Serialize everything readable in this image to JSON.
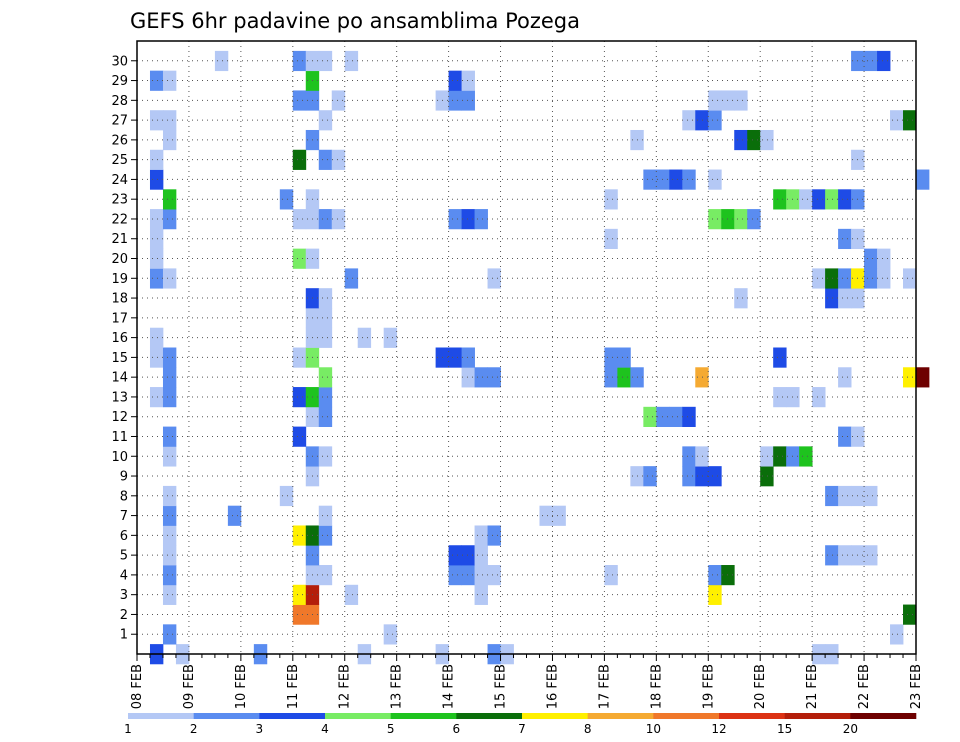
{
  "chart_data": {
    "type": "heatmap",
    "title": "GEFS 6hr padavine po ansamblima Pozega",
    "xlabel": "",
    "ylabel": "",
    "x_ticks": [
      "08 FEB",
      "09 FEB",
      "10 FEB",
      "11 FEB",
      "12 FEB",
      "13 FEB",
      "14 FEB",
      "15 FEB",
      "16 FEB",
      "17 FEB",
      "18 FEB",
      "19 FEB",
      "20 FEB",
      "21 FEB",
      "22 FEB",
      "23 FEB"
    ],
    "y_ticks": [
      "1",
      "2",
      "3",
      "4",
      "5",
      "6",
      "7",
      "8",
      "9",
      "10",
      "11",
      "12",
      "13",
      "14",
      "15",
      "16",
      "17",
      "18",
      "19",
      "20",
      "21",
      "22",
      "23",
      "24",
      "25",
      "26",
      "27",
      "28",
      "29",
      "30"
    ],
    "xlim_days": [
      0,
      15
    ],
    "steps_per_day": 4,
    "ylim": [
      0,
      30
    ],
    "grid": true,
    "colorbar": {
      "position": "bottom",
      "levels": [
        "1",
        "2",
        "3",
        "4",
        "5",
        "6",
        "7",
        "8",
        "10",
        "12",
        "15",
        "20"
      ],
      "colors": [
        "#b4c8f5",
        "#5a8cf0",
        "#1e4be6",
        "#78ec64",
        "#1ec31e",
        "#0a6e0a",
        "#fff000",
        "#f5aa32",
        "#f0782a",
        "#dc3214",
        "#b41e0a",
        "#6e0000"
      ]
    },
    "cells": [
      [
        1,
        0,
        3
      ],
      [
        3,
        0,
        1
      ],
      [
        9,
        0,
        2
      ],
      [
        17,
        0,
        1
      ],
      [
        23,
        0,
        1
      ],
      [
        27,
        0,
        2
      ],
      [
        28,
        0,
        1
      ],
      [
        52,
        0,
        1
      ],
      [
        53,
        0,
        1
      ],
      [
        2,
        1,
        2
      ],
      [
        19,
        1,
        1
      ],
      [
        58,
        1,
        1
      ],
      [
        12,
        2,
        9
      ],
      [
        13,
        2,
        9
      ],
      [
        59,
        2,
        6
      ],
      [
        2,
        3,
        1
      ],
      [
        12,
        3,
        7
      ],
      [
        13,
        3,
        11
      ],
      [
        16,
        3,
        1
      ],
      [
        26,
        3,
        1
      ],
      [
        44,
        3,
        7
      ],
      [
        2,
        4,
        2
      ],
      [
        13,
        4,
        1
      ],
      [
        14,
        4,
        1
      ],
      [
        24,
        4,
        2
      ],
      [
        25,
        4,
        2
      ],
      [
        26,
        4,
        1
      ],
      [
        27,
        4,
        1
      ],
      [
        36,
        4,
        1
      ],
      [
        44,
        4,
        2
      ],
      [
        45,
        4,
        6
      ],
      [
        2,
        5,
        1
      ],
      [
        13,
        5,
        2
      ],
      [
        24,
        5,
        3
      ],
      [
        25,
        5,
        3
      ],
      [
        26,
        5,
        1
      ],
      [
        53,
        5,
        2
      ],
      [
        54,
        5,
        1
      ],
      [
        55,
        5,
        1
      ],
      [
        56,
        5,
        1
      ],
      [
        2,
        6,
        1
      ],
      [
        12,
        6,
        7
      ],
      [
        13,
        6,
        6
      ],
      [
        14,
        6,
        2
      ],
      [
        26,
        6,
        1
      ],
      [
        27,
        6,
        2
      ],
      [
        2,
        7,
        2
      ],
      [
        7,
        7,
        2
      ],
      [
        14,
        7,
        1
      ],
      [
        31,
        7,
        1
      ],
      [
        32,
        7,
        1
      ],
      [
        2,
        8,
        1
      ],
      [
        11,
        8,
        1
      ],
      [
        53,
        8,
        2
      ],
      [
        54,
        8,
        1
      ],
      [
        55,
        8,
        1
      ],
      [
        56,
        8,
        1
      ],
      [
        13,
        9,
        1
      ],
      [
        38,
        9,
        1
      ],
      [
        39,
        9,
        2
      ],
      [
        42,
        9,
        2
      ],
      [
        43,
        9,
        3
      ],
      [
        44,
        9,
        3
      ],
      [
        48,
        9,
        6
      ],
      [
        2,
        10,
        1
      ],
      [
        13,
        10,
        2
      ],
      [
        14,
        10,
        1
      ],
      [
        42,
        10,
        2
      ],
      [
        43,
        10,
        1
      ],
      [
        48,
        10,
        1
      ],
      [
        49,
        10,
        6
      ],
      [
        50,
        10,
        2
      ],
      [
        51,
        10,
        5
      ],
      [
        2,
        11,
        2
      ],
      [
        12,
        11,
        3
      ],
      [
        54,
        11,
        2
      ],
      [
        55,
        11,
        1
      ],
      [
        13,
        12,
        1
      ],
      [
        14,
        12,
        2
      ],
      [
        39,
        12,
        4
      ],
      [
        40,
        12,
        2
      ],
      [
        41,
        12,
        2
      ],
      [
        42,
        12,
        3
      ],
      [
        1,
        13,
        1
      ],
      [
        2,
        13,
        2
      ],
      [
        12,
        13,
        3
      ],
      [
        13,
        13,
        5
      ],
      [
        14,
        13,
        2
      ],
      [
        49,
        13,
        1
      ],
      [
        50,
        13,
        1
      ],
      [
        52,
        13,
        1
      ],
      [
        2,
        14,
        2
      ],
      [
        14,
        14,
        4
      ],
      [
        25,
        14,
        1
      ],
      [
        26,
        14,
        2
      ],
      [
        27,
        14,
        2
      ],
      [
        36,
        14,
        2
      ],
      [
        37,
        14,
        5
      ],
      [
        38,
        14,
        2
      ],
      [
        43,
        14,
        8
      ],
      [
        54,
        14,
        1
      ],
      [
        59,
        14,
        7
      ],
      [
        60,
        14,
        12
      ],
      [
        1,
        15,
        1
      ],
      [
        2,
        15,
        2
      ],
      [
        12,
        15,
        1
      ],
      [
        13,
        15,
        4
      ],
      [
        23,
        15,
        3
      ],
      [
        24,
        15,
        3
      ],
      [
        25,
        15,
        2
      ],
      [
        36,
        15,
        2
      ],
      [
        37,
        15,
        2
      ],
      [
        49,
        15,
        3
      ],
      [
        1,
        16,
        1
      ],
      [
        13,
        16,
        1
      ],
      [
        14,
        16,
        1
      ],
      [
        17,
        16,
        1
      ],
      [
        19,
        16,
        1
      ],
      [
        13,
        17,
        1
      ],
      [
        14,
        17,
        1
      ],
      [
        13,
        18,
        3
      ],
      [
        14,
        18,
        1
      ],
      [
        46,
        18,
        1
      ],
      [
        53,
        18,
        3
      ],
      [
        54,
        18,
        1
      ],
      [
        55,
        18,
        1
      ],
      [
        1,
        19,
        2
      ],
      [
        2,
        19,
        1
      ],
      [
        16,
        19,
        2
      ],
      [
        27,
        19,
        1
      ],
      [
        52,
        19,
        1
      ],
      [
        53,
        19,
        6
      ],
      [
        54,
        19,
        2
      ],
      [
        55,
        19,
        7
      ],
      [
        56,
        19,
        2
      ],
      [
        57,
        19,
        1
      ],
      [
        59,
        19,
        1
      ],
      [
        1,
        20,
        1
      ],
      [
        12,
        20,
        4
      ],
      [
        13,
        20,
        1
      ],
      [
        56,
        20,
        2
      ],
      [
        57,
        20,
        1
      ],
      [
        1,
        21,
        1
      ],
      [
        36,
        21,
        1
      ],
      [
        54,
        21,
        2
      ],
      [
        55,
        21,
        1
      ],
      [
        1,
        22,
        1
      ],
      [
        2,
        22,
        2
      ],
      [
        12,
        22,
        1
      ],
      [
        13,
        22,
        1
      ],
      [
        14,
        22,
        2
      ],
      [
        15,
        22,
        1
      ],
      [
        24,
        22,
        2
      ],
      [
        25,
        22,
        3
      ],
      [
        26,
        22,
        2
      ],
      [
        44,
        22,
        4
      ],
      [
        45,
        22,
        5
      ],
      [
        46,
        22,
        4
      ],
      [
        47,
        22,
        2
      ],
      [
        2,
        23,
        5
      ],
      [
        11,
        23,
        2
      ],
      [
        13,
        23,
        1
      ],
      [
        36,
        23,
        1
      ],
      [
        49,
        23,
        5
      ],
      [
        50,
        23,
        4
      ],
      [
        51,
        23,
        1
      ],
      [
        52,
        23,
        3
      ],
      [
        53,
        23,
        4
      ],
      [
        54,
        23,
        3
      ],
      [
        55,
        23,
        2
      ],
      [
        1,
        24,
        3
      ],
      [
        39,
        24,
        2
      ],
      [
        40,
        24,
        2
      ],
      [
        41,
        24,
        3
      ],
      [
        42,
        24,
        2
      ],
      [
        44,
        24,
        1
      ],
      [
        60,
        24,
        2
      ],
      [
        1,
        25,
        1
      ],
      [
        12,
        25,
        6
      ],
      [
        14,
        25,
        2
      ],
      [
        15,
        25,
        1
      ],
      [
        55,
        25,
        1
      ],
      [
        2,
        26,
        1
      ],
      [
        13,
        26,
        2
      ],
      [
        38,
        26,
        1
      ],
      [
        46,
        26,
        3
      ],
      [
        47,
        26,
        6
      ],
      [
        48,
        26,
        1
      ],
      [
        1,
        27,
        1
      ],
      [
        2,
        27,
        1
      ],
      [
        14,
        27,
        1
      ],
      [
        42,
        27,
        1
      ],
      [
        43,
        27,
        3
      ],
      [
        44,
        27,
        2
      ],
      [
        58,
        27,
        1
      ],
      [
        59,
        27,
        6
      ],
      [
        12,
        28,
        2
      ],
      [
        13,
        28,
        2
      ],
      [
        15,
        28,
        1
      ],
      [
        23,
        28,
        1
      ],
      [
        24,
        28,
        2
      ],
      [
        25,
        28,
        2
      ],
      [
        44,
        28,
        1
      ],
      [
        45,
        28,
        1
      ],
      [
        46,
        28,
        1
      ],
      [
        1,
        29,
        2
      ],
      [
        2,
        29,
        1
      ],
      [
        13,
        29,
        5
      ],
      [
        24,
        29,
        3
      ],
      [
        25,
        29,
        1
      ],
      [
        6,
        30,
        1
      ],
      [
        12,
        30,
        2
      ],
      [
        13,
        30,
        1
      ],
      [
        14,
        30,
        1
      ],
      [
        16,
        30,
        1
      ],
      [
        55,
        30,
        2
      ],
      [
        56,
        30,
        2
      ],
      [
        57,
        30,
        3
      ]
    ]
  }
}
